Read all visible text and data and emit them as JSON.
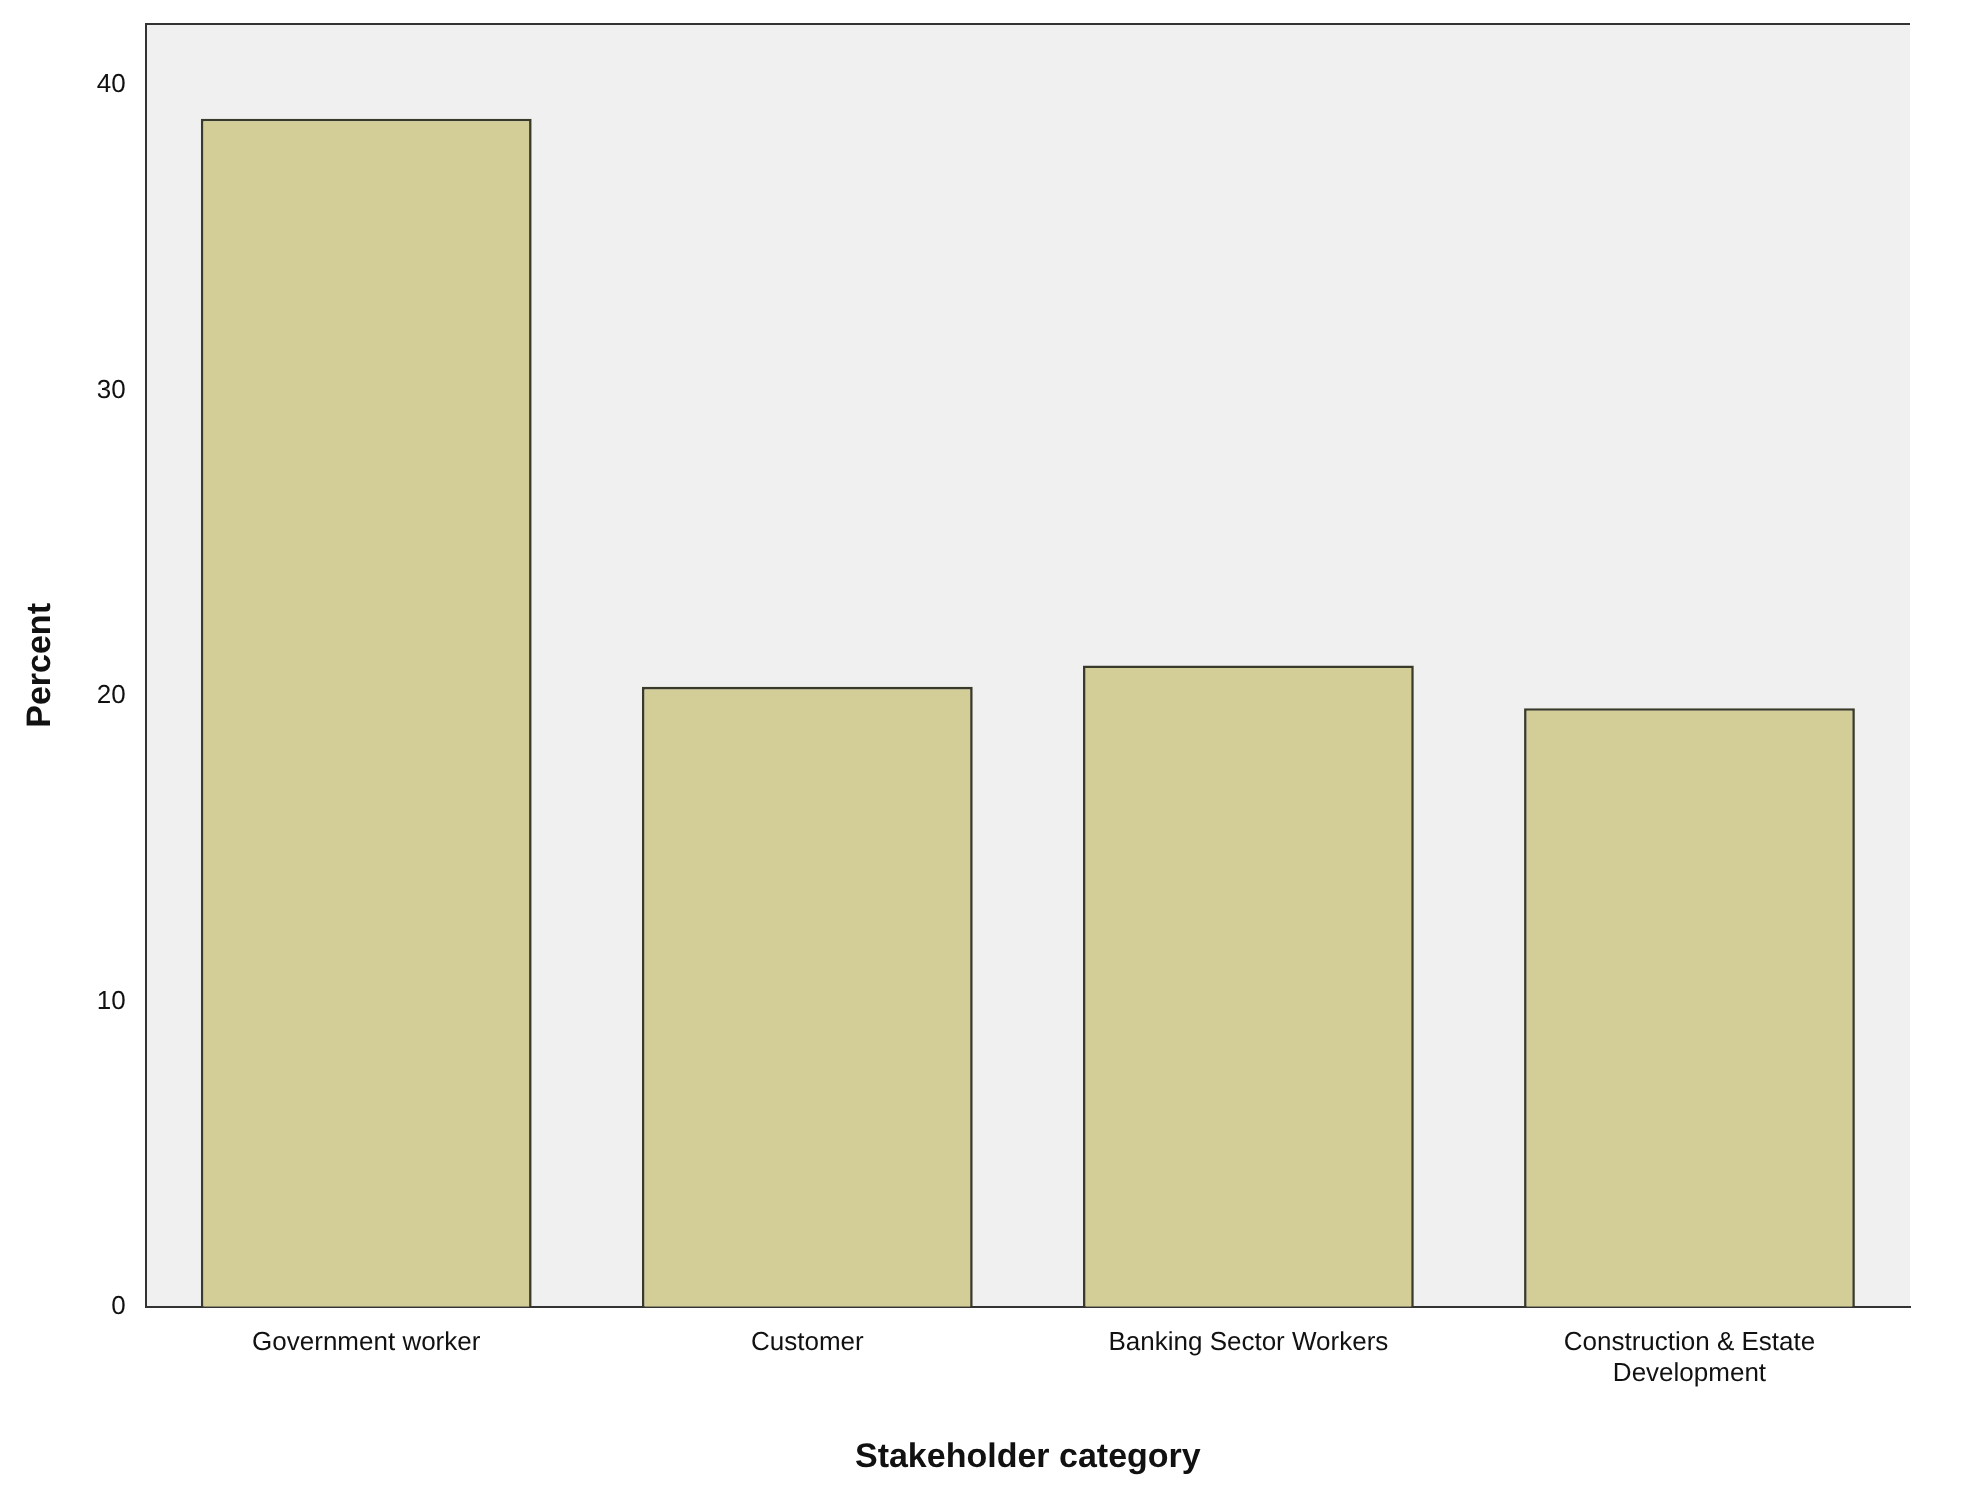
{
  "chart_data": {
    "type": "bar",
    "xlabel": "Stakeholder category",
    "ylabel": "Percent",
    "categories": [
      "Government worker",
      "Customer",
      "Banking Sector Workers",
      "Construction & Estate Development"
    ],
    "values": [
      38.9,
      20.3,
      21.0,
      19.6
    ],
    "color": "#d3ce97",
    "ylim": [
      0,
      42
    ],
    "yticks": [
      0,
      10,
      20,
      30,
      40
    ],
    "grid": false,
    "legend": false
  }
}
